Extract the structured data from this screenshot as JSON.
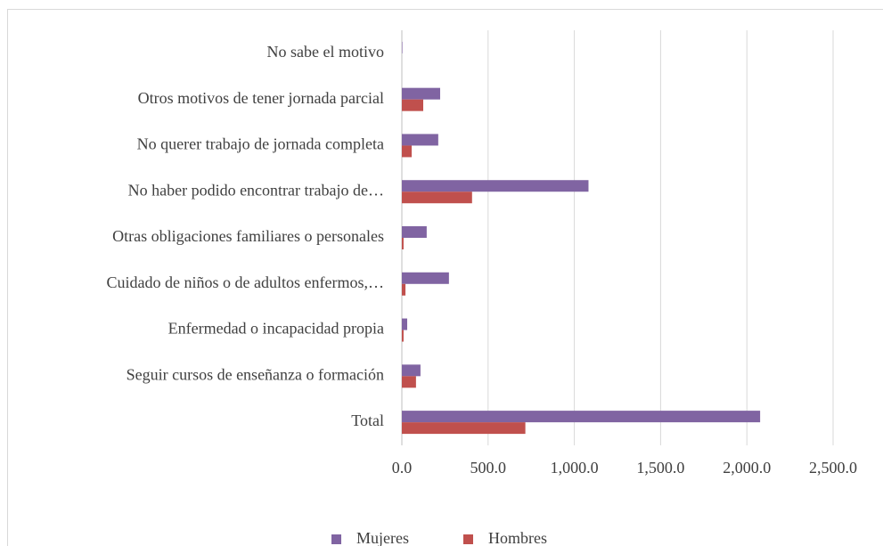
{
  "chart_data": {
    "type": "bar",
    "orientation": "horizontal",
    "categories": [
      "No sabe el motivo",
      "Otros motivos de tener jornada parcial",
      "No querer trabajo de jornada completa",
      "No haber podido encontrar trabajo de…",
      "Otras obligaciones familiares o personales",
      "Cuidado de niños o de adultos enfermos,…",
      "Enfermedad o incapacidad propia",
      "Seguir cursos de enseñanza o formación",
      "Total"
    ],
    "series": [
      {
        "name": "Mujeres",
        "color": "#8064a2",
        "values": [
          3,
          222,
          211,
          1082,
          144,
          273,
          31,
          108,
          2077
        ]
      },
      {
        "name": "Hombres",
        "color": "#c0504d",
        "values": [
          0,
          124,
          57,
          407,
          10,
          21,
          10,
          82,
          716
        ]
      }
    ],
    "xlim": [
      0,
      2500
    ],
    "xticks": [
      {
        "value": 0,
        "label": "0.0"
      },
      {
        "value": 500,
        "label": "500.0"
      },
      {
        "value": 1000,
        "label": "1,000.0"
      },
      {
        "value": 1500,
        "label": "1,500.0"
      },
      {
        "value": 2000,
        "label": "2,000.0"
      },
      {
        "value": 2500,
        "label": "2,500.0"
      }
    ],
    "grid": true,
    "legend": "bottom"
  }
}
